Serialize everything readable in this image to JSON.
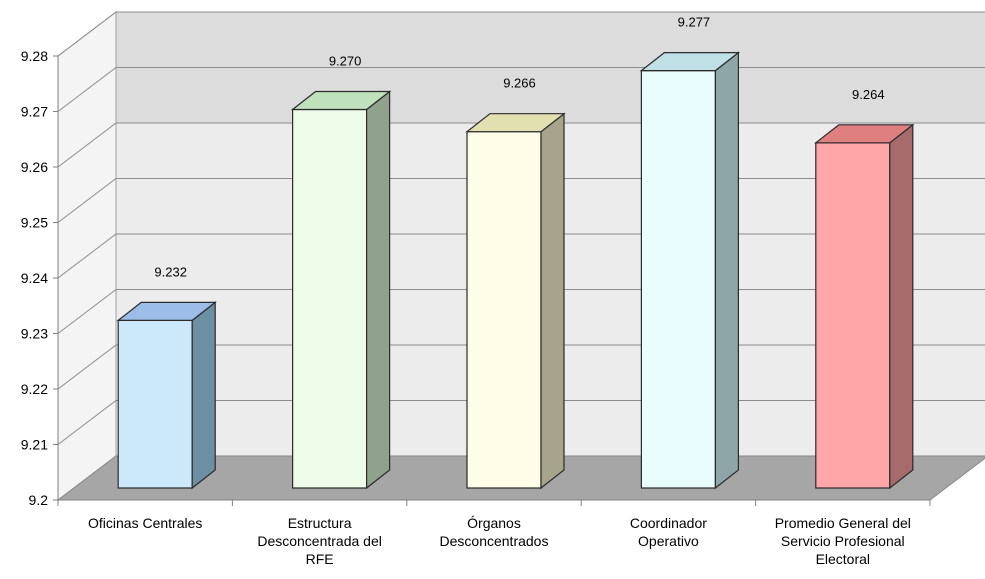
{
  "chart_data": {
    "type": "bar",
    "title": "",
    "xlabel": "",
    "ylabel": "",
    "ylim": [
      9.2,
      9.28
    ],
    "yticks": [
      "9.2",
      "9.21",
      "9.22",
      "9.23",
      "9.24",
      "9.25",
      "9.26",
      "9.27",
      "9.28"
    ],
    "grid": true,
    "three_d": true,
    "categories": [
      [
        "Oficinas Centrales"
      ],
      [
        "Estructura",
        "Desconcentrada del",
        "RFE"
      ],
      [
        "Órganos",
        "Desconcentrados"
      ],
      [
        "Coordinador",
        "Operativo"
      ],
      [
        "Promedio General del",
        "Servicio Profesional",
        "Electoral"
      ]
    ],
    "values": [
      9.232,
      9.27,
      9.266,
      9.277,
      9.264
    ],
    "value_labels": [
      "9.232",
      "9.270",
      "9.266",
      "9.277",
      "9.264"
    ],
    "colors": [
      {
        "front": "#cce8fb",
        "side": "#6d8fa2",
        "top": "#9bbde8"
      },
      {
        "front": "#edfbe8",
        "side": "#8fa38c",
        "top": "#bfe2bd"
      },
      {
        "front": "#fefde8",
        "side": "#a6a58c",
        "top": "#e2dfb0"
      },
      {
        "front": "#eafdfe",
        "side": "#8ea6a8",
        "top": "#bfe0e4"
      },
      {
        "front": "#fea6a8",
        "side": "#a76b6c",
        "top": "#e07f80"
      }
    ]
  }
}
